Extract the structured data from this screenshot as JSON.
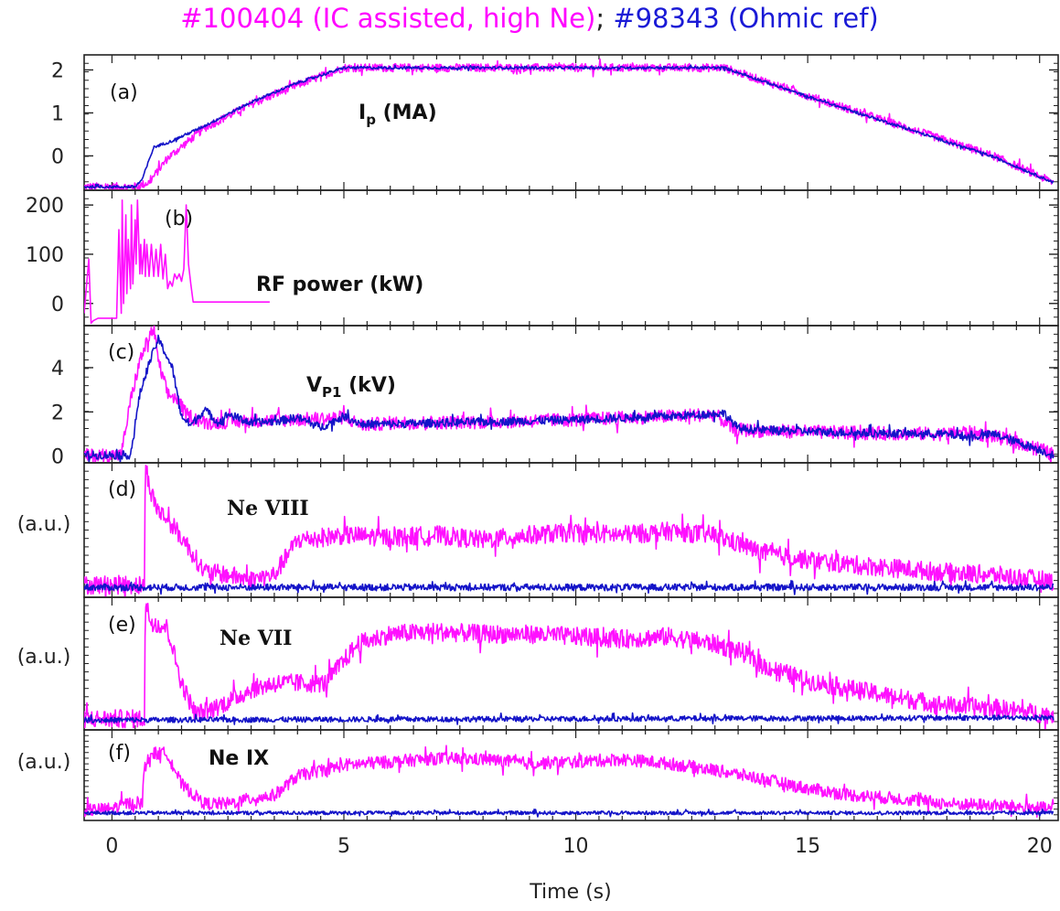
{
  "figure": {
    "title_part1": "#100404 (IC assisted, high Ne)",
    "title_sep": "; ",
    "title_part2": "#98343 (Ohmic ref)",
    "title_color1": "#ff00ff",
    "title_color2": "#1a1ad6",
    "xlabel": "Time (s)",
    "x_ticks": [
      "0",
      "5",
      "10",
      "15",
      "20"
    ],
    "colors": {
      "ic_assisted": "#ff10ff",
      "ohmic": "#1414c8"
    }
  },
  "chart_data": [
    {
      "type": "line",
      "panel": "(a)",
      "label_main": "I",
      "label_sub": "p",
      "label_rest": " (MA)",
      "xlim": [
        -0.6,
        20.4
      ],
      "ylim": [
        -0.8,
        2.35
      ],
      "y_ticks": [
        0,
        1,
        2
      ],
      "y_tick_labels": [
        "0",
        "1",
        "2"
      ],
      "ylabel": "",
      "series": [
        {
          "name": "#100404",
          "color": "#ff10ff",
          "noise": 0.03,
          "x": [
            -0.6,
            0.5,
            0.8,
            1.2,
            2,
            3,
            4,
            5,
            13.2,
            15,
            17,
            19,
            20.3
          ],
          "y": [
            -0.72,
            -0.72,
            -0.62,
            -0.05,
            0.65,
            1.2,
            1.65,
            2.05,
            2.05,
            1.4,
            0.7,
            0.0,
            -0.62
          ]
        },
        {
          "name": "#98343",
          "color": "#1414c8",
          "noise": 0.01,
          "x": [
            -0.6,
            0.5,
            0.65,
            0.9,
            1.3,
            2,
            3,
            4,
            5,
            13.2,
            15,
            17,
            19,
            20.3
          ],
          "y": [
            -0.72,
            -0.72,
            -0.55,
            0.2,
            0.35,
            0.7,
            1.25,
            1.7,
            2.05,
            2.05,
            1.38,
            0.68,
            -0.02,
            -0.62
          ]
        }
      ]
    },
    {
      "type": "line",
      "panel": "(b)",
      "label_main": "RF power (kW)",
      "label_sub": "",
      "label_rest": "",
      "xlim": [
        -0.6,
        20.4
      ],
      "ylim": [
        -45,
        230
      ],
      "y_ticks": [
        0,
        100,
        200
      ],
      "y_tick_labels": [
        "0",
        "100",
        "200"
      ],
      "ylabel": "",
      "series": [
        {
          "name": "#100404",
          "color": "#ff10ff",
          "noise": 0,
          "x": [
            -0.6,
            -0.5,
            -0.45,
            -0.4,
            -0.3,
            -0.1,
            0,
            0.1,
            0.15,
            0.2,
            0.22,
            0.25,
            0.3,
            0.32,
            0.35,
            0.4,
            0.42,
            0.45,
            0.5,
            0.52,
            0.55,
            0.6,
            0.62,
            0.65,
            0.7,
            0.72,
            0.75,
            0.8,
            0.85,
            0.9,
            0.95,
            1.0,
            1.05,
            1.1,
            1.15,
            1.2,
            1.25,
            1.3,
            1.35,
            1.4,
            1.45,
            1.5,
            1.55,
            1.6,
            1.65,
            1.7,
            1.75,
            1.8,
            1.85,
            1.9,
            2.2,
            3.4
          ],
          "y": [
            -20,
            90,
            -40,
            -35,
            -30,
            -30,
            -30,
            -30,
            150,
            -20,
            210,
            0,
            180,
            20,
            130,
            30,
            200,
            40,
            170,
            80,
            210,
            60,
            120,
            60,
            130,
            55,
            120,
            55,
            120,
            55,
            110,
            55,
            120,
            50,
            100,
            30,
            45,
            35,
            60,
            50,
            60,
            45,
            70,
            200,
            80,
            40,
            3,
            3,
            3,
            3,
            3,
            3
          ]
        }
      ]
    },
    {
      "type": "line",
      "panel": "(c)",
      "label_main": "V",
      "label_sub": "P1",
      "label_rest": " (kV)",
      "xlim": [
        -0.6,
        20.4
      ],
      "ylim": [
        -0.3,
        5.9
      ],
      "y_ticks": [
        0,
        2,
        4
      ],
      "y_tick_labels": [
        "0",
        "2",
        "4"
      ],
      "ylabel": "",
      "series": [
        {
          "name": "#100404",
          "color": "#ff10ff",
          "noise": 0.05,
          "x": [
            -0.6,
            0.2,
            0.4,
            0.6,
            0.8,
            0.9,
            1.0,
            1.2,
            1.4,
            1.6,
            2,
            3,
            4,
            5,
            5.4,
            6,
            8,
            10,
            12,
            13,
            13.4,
            14,
            16,
            18,
            18.4,
            19,
            20,
            20.3
          ],
          "y": [
            0.03,
            0.05,
            2.5,
            4.3,
            5.4,
            5.75,
            4.3,
            2.8,
            2.6,
            1.9,
            1.5,
            1.6,
            1.65,
            1.75,
            1.4,
            1.5,
            1.55,
            1.65,
            1.8,
            1.9,
            1.2,
            1.15,
            1.05,
            1.0,
            1.1,
            0.9,
            0.35,
            0.05
          ]
        },
        {
          "name": "#98343",
          "color": "#1414c8",
          "noise": 0.03,
          "x": [
            -0.6,
            0.4,
            0.6,
            0.8,
            1.0,
            1.3,
            1.5,
            1.7,
            2,
            2.3,
            2.5,
            3,
            3.6,
            4,
            4.5,
            5,
            5.4,
            6,
            8,
            10,
            12,
            13.2,
            13.5,
            14,
            16,
            18,
            18.5,
            19,
            20,
            20.3
          ],
          "y": [
            0.05,
            0.05,
            2.8,
            4.2,
            5.3,
            4.0,
            1.8,
            1.4,
            2.1,
            1.5,
            1.9,
            1.5,
            1.6,
            1.75,
            1.3,
            1.8,
            1.45,
            1.45,
            1.55,
            1.65,
            1.8,
            1.95,
            1.25,
            1.2,
            1.05,
            1.0,
            0.85,
            1.0,
            0.3,
            0.03
          ]
        }
      ]
    },
    {
      "type": "line",
      "panel": "(d)",
      "label_main": "Ne VIII",
      "label_sub": "",
      "label_rest": "",
      "label_font": "serif",
      "xlim": [
        -0.6,
        20.4
      ],
      "ylim": [
        -0.08,
        1.0
      ],
      "y_ticks": [],
      "y_tick_labels": [],
      "ylabel": "(a.u.)",
      "series": [
        {
          "name": "#100404",
          "color": "#ff10ff",
          "noise": 0.07,
          "x": [
            -0.6,
            0.4,
            0.7,
            0.72,
            0.85,
            1.0,
            1.3,
            1.6,
            2,
            2.5,
            3,
            3.5,
            4,
            5,
            6,
            7,
            8,
            9,
            10,
            11,
            12,
            13,
            14,
            15,
            16,
            17,
            18,
            19,
            20.3
          ],
          "y": [
            0.02,
            0.02,
            0.02,
            0.98,
            0.75,
            0.62,
            0.5,
            0.35,
            0.12,
            0.1,
            0.06,
            0.1,
            0.38,
            0.42,
            0.4,
            0.42,
            0.38,
            0.42,
            0.44,
            0.42,
            0.45,
            0.42,
            0.28,
            0.22,
            0.18,
            0.15,
            0.12,
            0.1,
            0.05
          ]
        },
        {
          "name": "#98343",
          "color": "#1414c8",
          "noise": 0.025,
          "x": [
            -0.6,
            20.3
          ],
          "y": [
            0.0,
            0.0
          ]
        }
      ]
    },
    {
      "type": "line",
      "panel": "(e)",
      "label_main": "Ne VII",
      "label_sub": "",
      "label_rest": "",
      "label_font": "serif",
      "xlim": [
        -0.6,
        20.4
      ],
      "ylim": [
        -0.08,
        1.0
      ],
      "y_ticks": [],
      "y_tick_labels": [],
      "ylabel": "(a.u.)",
      "series": [
        {
          "name": "#100404",
          "color": "#ff10ff",
          "noise": 0.07,
          "x": [
            -0.6,
            0.4,
            0.7,
            0.72,
            0.85,
            1.2,
            1.5,
            1.8,
            2.1,
            2.5,
            3,
            3.5,
            4,
            4.6,
            5.3,
            6,
            7,
            8,
            9,
            10,
            11,
            12,
            13,
            13.6,
            14,
            15,
            16,
            17,
            18,
            19,
            20.3
          ],
          "y": [
            0.01,
            0.01,
            0.01,
            0.95,
            0.8,
            0.75,
            0.3,
            0.05,
            0.08,
            0.15,
            0.25,
            0.3,
            0.3,
            0.3,
            0.62,
            0.7,
            0.72,
            0.7,
            0.7,
            0.68,
            0.66,
            0.68,
            0.62,
            0.55,
            0.45,
            0.32,
            0.25,
            0.18,
            0.12,
            0.1,
            0.04
          ]
        },
        {
          "name": "#98343",
          "color": "#1414c8",
          "noise": 0.02,
          "x": [
            -0.6,
            20.3
          ],
          "y": [
            0.0,
            0.02
          ]
        }
      ]
    },
    {
      "type": "line",
      "panel": "(f)",
      "label_main": "Ne IX",
      "label_sub": "",
      "label_rest": "",
      "label_font": "sans",
      "xlim": [
        -0.6,
        20.4
      ],
      "ylim": [
        -0.08,
        1.0
      ],
      "y_ticks": [],
      "y_tick_labels": [],
      "ylabel": "(a.u.)",
      "series": [
        {
          "name": "#100404",
          "color": "#ff10ff",
          "noise": 0.07,
          "x": [
            -0.6,
            0.0,
            0.3,
            0.65,
            0.7,
            0.85,
            1.2,
            1.5,
            2,
            2.5,
            3,
            3.5,
            4,
            5,
            6,
            7,
            8,
            9,
            10,
            11,
            12,
            13,
            14,
            15,
            16,
            17,
            18,
            19,
            20.3
          ],
          "y": [
            0.04,
            0.06,
            0.12,
            0.12,
            0.55,
            0.72,
            0.72,
            0.35,
            0.12,
            0.12,
            0.18,
            0.22,
            0.45,
            0.58,
            0.62,
            0.66,
            0.65,
            0.6,
            0.62,
            0.65,
            0.6,
            0.52,
            0.42,
            0.3,
            0.22,
            0.18,
            0.12,
            0.1,
            0.06
          ]
        },
        {
          "name": "#98343",
          "color": "#1414c8",
          "noise": 0.02,
          "x": [
            -0.6,
            20.3
          ],
          "y": [
            0.01,
            0.01
          ]
        }
      ]
    }
  ]
}
